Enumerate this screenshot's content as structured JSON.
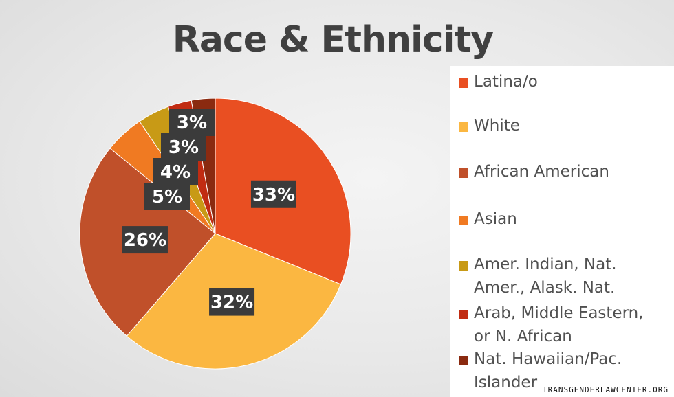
{
  "chart_data": {
    "type": "pie",
    "title": "Race & Ethnicity",
    "categories": [
      "Latina/o",
      "White",
      "African American",
      "Asian",
      "Amer. Indian, Nat. Amer., Alask. Nat.",
      "Arab, Middle Eastern, or N. African",
      "Nat. Hawaiian/Pac. Islander"
    ],
    "values": [
      33,
      32,
      26,
      5,
      4,
      3,
      3
    ],
    "data_labels": [
      "33%",
      "32%",
      "26%",
      "5%",
      "4%",
      "3%",
      "3%"
    ],
    "colors": [
      "#e94f22",
      "#fbb741",
      "#c0502a",
      "#f07a22",
      "#c89a16",
      "#c12c12",
      "#8a2a10"
    ],
    "legend_position": "right"
  },
  "legend": {
    "items": [
      {
        "label": "Latina/o",
        "color": "#e94f22"
      },
      {
        "label": "White",
        "color": "#fbb741"
      },
      {
        "label": "African American",
        "color": "#c0502a"
      },
      {
        "label": "Asian",
        "color": "#f07a22"
      },
      {
        "label": "Amer. Indian, Nat.\nAmer., Alask. Nat.",
        "color": "#c89a16"
      },
      {
        "label": "Arab, Middle Eastern,\nor N. African",
        "color": "#c12c12"
      },
      {
        "label": "Nat. Hawaiian/Pac.\nIslander",
        "color": "#8a2a10"
      }
    ]
  },
  "watermark": "TRANSGENDERLAWCENTER.ORG"
}
